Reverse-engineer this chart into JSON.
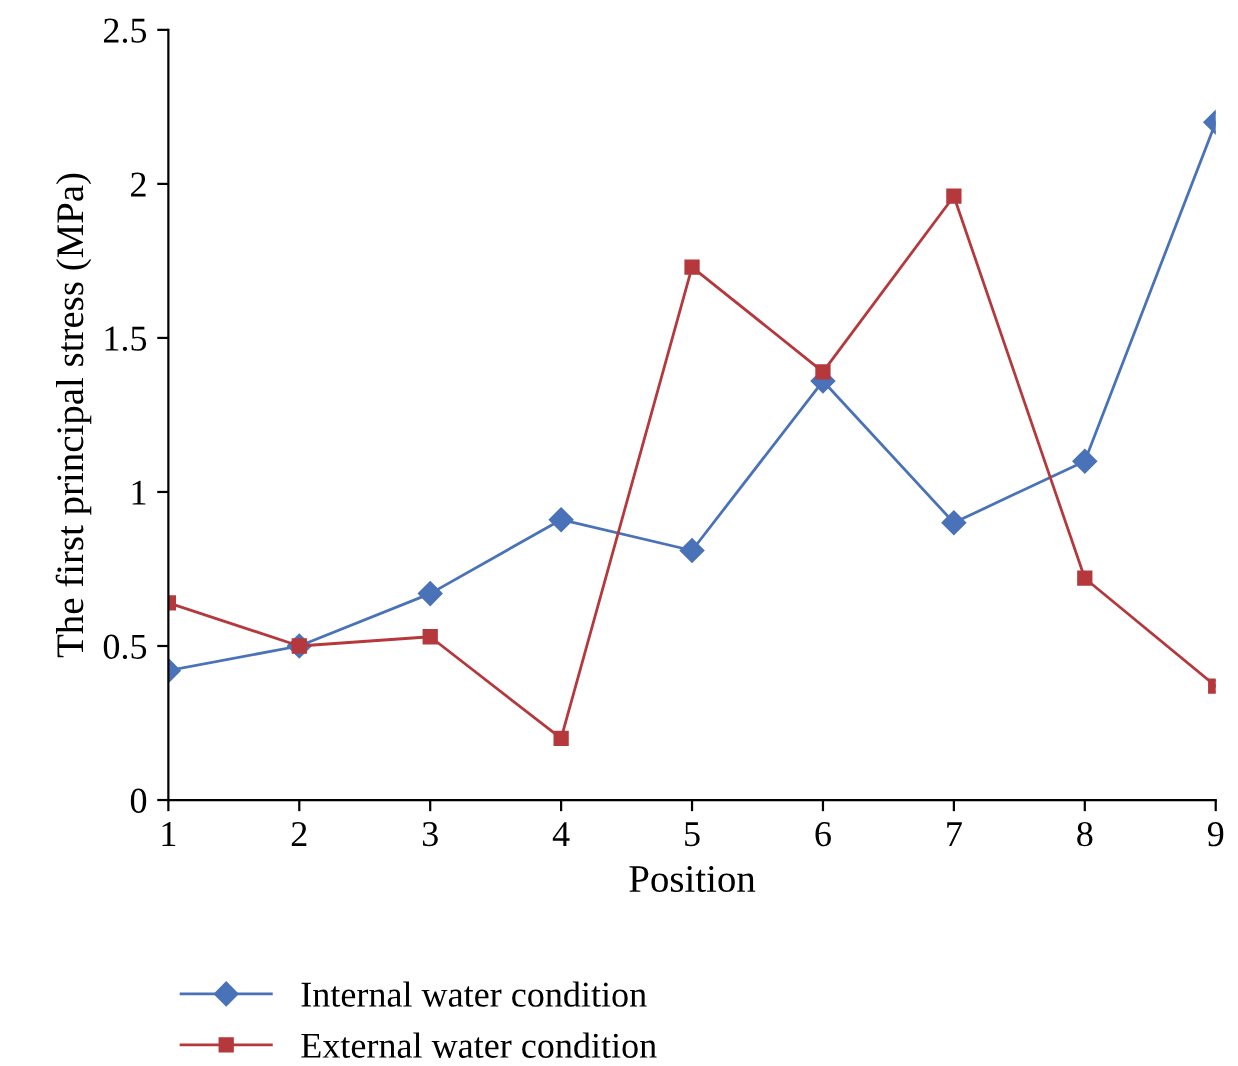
{
  "chart_data": {
    "type": "line",
    "xlabel": "Position",
    "ylabel": "The first principal stress (MPa)",
    "x": [
      1,
      2,
      3,
      4,
      5,
      6,
      7,
      8,
      9
    ],
    "series": [
      {
        "name": "Internal water condition",
        "color": "#4a72b8",
        "marker": "diamond",
        "values": [
          0.42,
          0.5,
          0.67,
          0.91,
          0.81,
          1.36,
          0.9,
          1.1,
          2.2
        ]
      },
      {
        "name": "External water condition",
        "color": "#b5383c",
        "marker": "square",
        "values": [
          0.64,
          0.5,
          0.53,
          0.2,
          1.73,
          1.39,
          1.96,
          0.72,
          0.37
        ]
      }
    ],
    "xlim": [
      1,
      9
    ],
    "xticks": [
      1,
      2,
      3,
      4,
      5,
      6,
      7,
      8,
      9
    ],
    "ylim": [
      0,
      2.5
    ],
    "yticks": [
      0,
      0.5,
      1,
      1.5,
      2,
      2.5
    ],
    "grid": false,
    "legend": "bottom left",
    "line_style": "solid"
  }
}
